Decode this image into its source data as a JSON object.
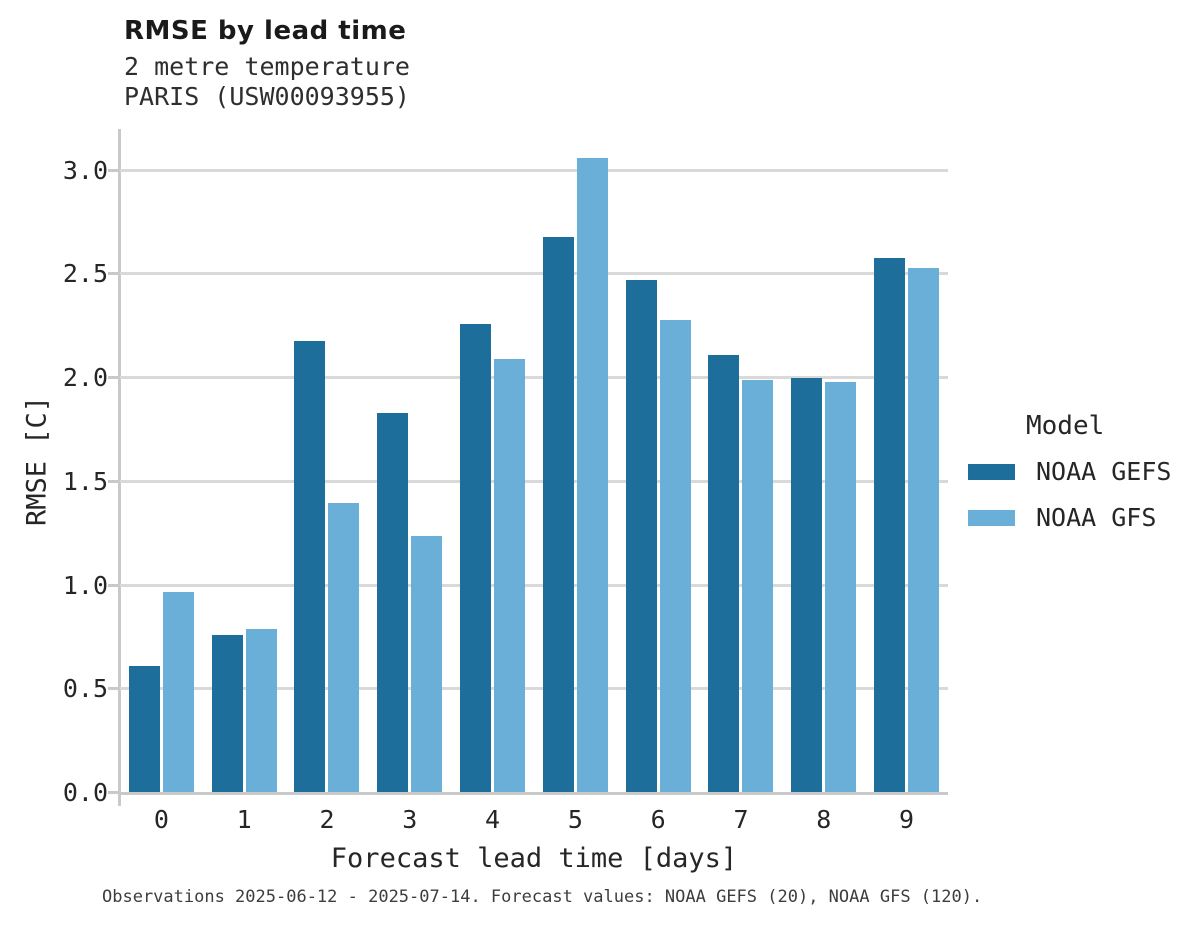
{
  "chart_data": {
    "type": "bar",
    "title": "RMSE by lead time",
    "subtitle_line1": "2 metre temperature",
    "subtitle_line2": "PARIS (USW00093955)",
    "xlabel": "Forecast lead time [days]",
    "ylabel": "RMSE [C]",
    "categories": [
      "0",
      "1",
      "2",
      "3",
      "4",
      "5",
      "6",
      "7",
      "8",
      "9"
    ],
    "series": [
      {
        "name": "NOAA GEFS",
        "color": "#1E6E9C",
        "values": [
          0.61,
          0.76,
          2.18,
          1.83,
          2.26,
          2.68,
          2.47,
          2.11,
          2.0,
          2.58
        ]
      },
      {
        "name": "NOAA GFS",
        "color": "#69AFD7",
        "values": [
          0.97,
          0.79,
          1.4,
          1.24,
          2.09,
          3.06,
          2.28,
          1.99,
          1.98,
          2.53
        ]
      }
    ],
    "ylim": [
      0,
      3.2
    ],
    "yticks": [
      0.0,
      0.5,
      1.0,
      1.5,
      2.0,
      2.5,
      3.0
    ],
    "ytick_labels": [
      "0.0",
      "0.5",
      "1.0",
      "1.5",
      "2.0",
      "2.5",
      "3.0"
    ],
    "grid": "horizontal",
    "legend_title": "Model",
    "legend_position": "right",
    "caption": "Observations 2025-06-12 - 2025-07-14. Forecast values: NOAA GEFS (20), NOAA GFS (120)."
  },
  "style": {
    "grid_color": "#d9d9d9",
    "spine_color": "#c9c9c9",
    "text_color": "#262626",
    "caption_color": "#3d3d3d",
    "background": "#ffffff"
  }
}
